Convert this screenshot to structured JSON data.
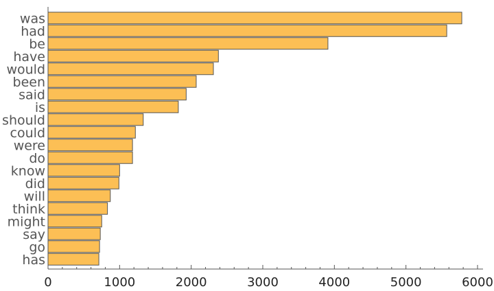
{
  "chart_data": {
    "type": "bar",
    "orientation": "horizontal",
    "title": "",
    "xlabel": "",
    "ylabel": "",
    "categories": [
      "was",
      "had",
      "be",
      "have",
      "would",
      "been",
      "said",
      "is",
      "should",
      "could",
      "were",
      "do",
      "know",
      "did",
      "will",
      "think",
      "might",
      "say",
      "go",
      "has"
    ],
    "values": [
      5780,
      5570,
      3910,
      2380,
      2310,
      2070,
      1930,
      1820,
      1330,
      1220,
      1180,
      1180,
      1000,
      990,
      870,
      830,
      750,
      730,
      720,
      710
    ],
    "xlim": [
      0,
      6000
    ],
    "xticks": [
      "0",
      "1000",
      "2000",
      "3000",
      "4000",
      "5000",
      "6000"
    ],
    "grid": false,
    "colors": {
      "bar": "#fcbf55",
      "bar_edge": "#555555",
      "axis": "#555555"
    }
  }
}
